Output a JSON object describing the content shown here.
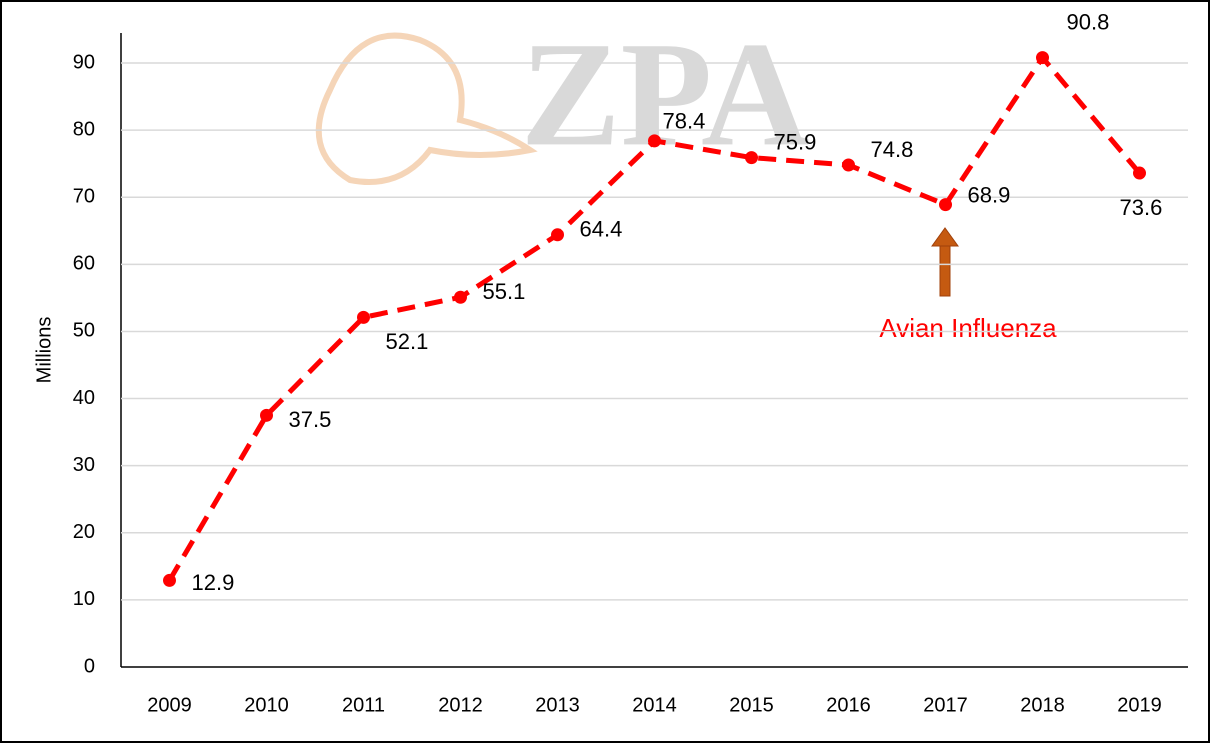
{
  "chart_data": {
    "type": "line",
    "watermark": "ZPA",
    "ylabel": "Millions",
    "categories": [
      "2009",
      "2010",
      "2011",
      "2012",
      "2013",
      "2014",
      "2015",
      "2016",
      "2017",
      "2018",
      "2019"
    ],
    "series": [
      {
        "name": "Millions",
        "color": "#ff0000",
        "values": [
          12.9,
          37.5,
          52.1,
          55.1,
          64.4,
          78.4,
          75.9,
          74.8,
          68.9,
          90.8,
          73.6
        ]
      }
    ],
    "ylim": [
      0,
      90
    ],
    "yticks": [
      0,
      10,
      20,
      30,
      40,
      50,
      60,
      70,
      80,
      90
    ],
    "grid": true,
    "annotation": "Avian Influenza"
  }
}
